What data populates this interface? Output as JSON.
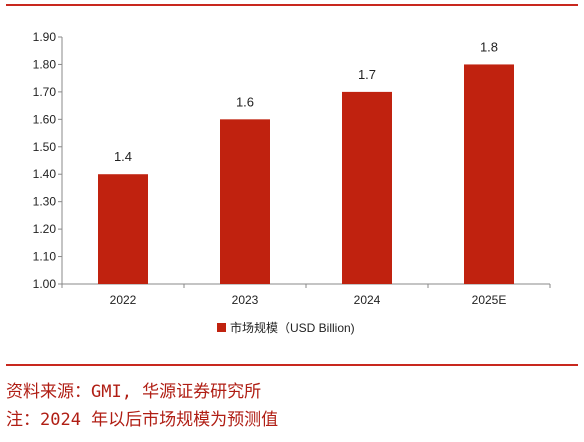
{
  "chart_data": {
    "type": "bar",
    "categories": [
      "2022",
      "2023",
      "2024",
      "2025E"
    ],
    "values": [
      1.4,
      1.6,
      1.7,
      1.8
    ],
    "data_labels": [
      "1.4",
      "1.6",
      "1.7",
      "1.8"
    ],
    "ylim": [
      1.0,
      1.9
    ],
    "yticks": [
      "1.00",
      "1.10",
      "1.20",
      "1.30",
      "1.40",
      "1.50",
      "1.60",
      "1.70",
      "1.80",
      "1.90"
    ],
    "series": [
      {
        "name": "市场规模（USD Billion)",
        "values": [
          1.4,
          1.6,
          1.7,
          1.8
        ]
      }
    ],
    "legend_position": "bottom",
    "grid": false,
    "bar_color": "#c0220f"
  },
  "footer": {
    "source": "资料来源：GMI, 华源证券研究所",
    "note": "注：2024 年以后市场规模为预测值"
  },
  "colors": {
    "accent": "#c8281e"
  }
}
